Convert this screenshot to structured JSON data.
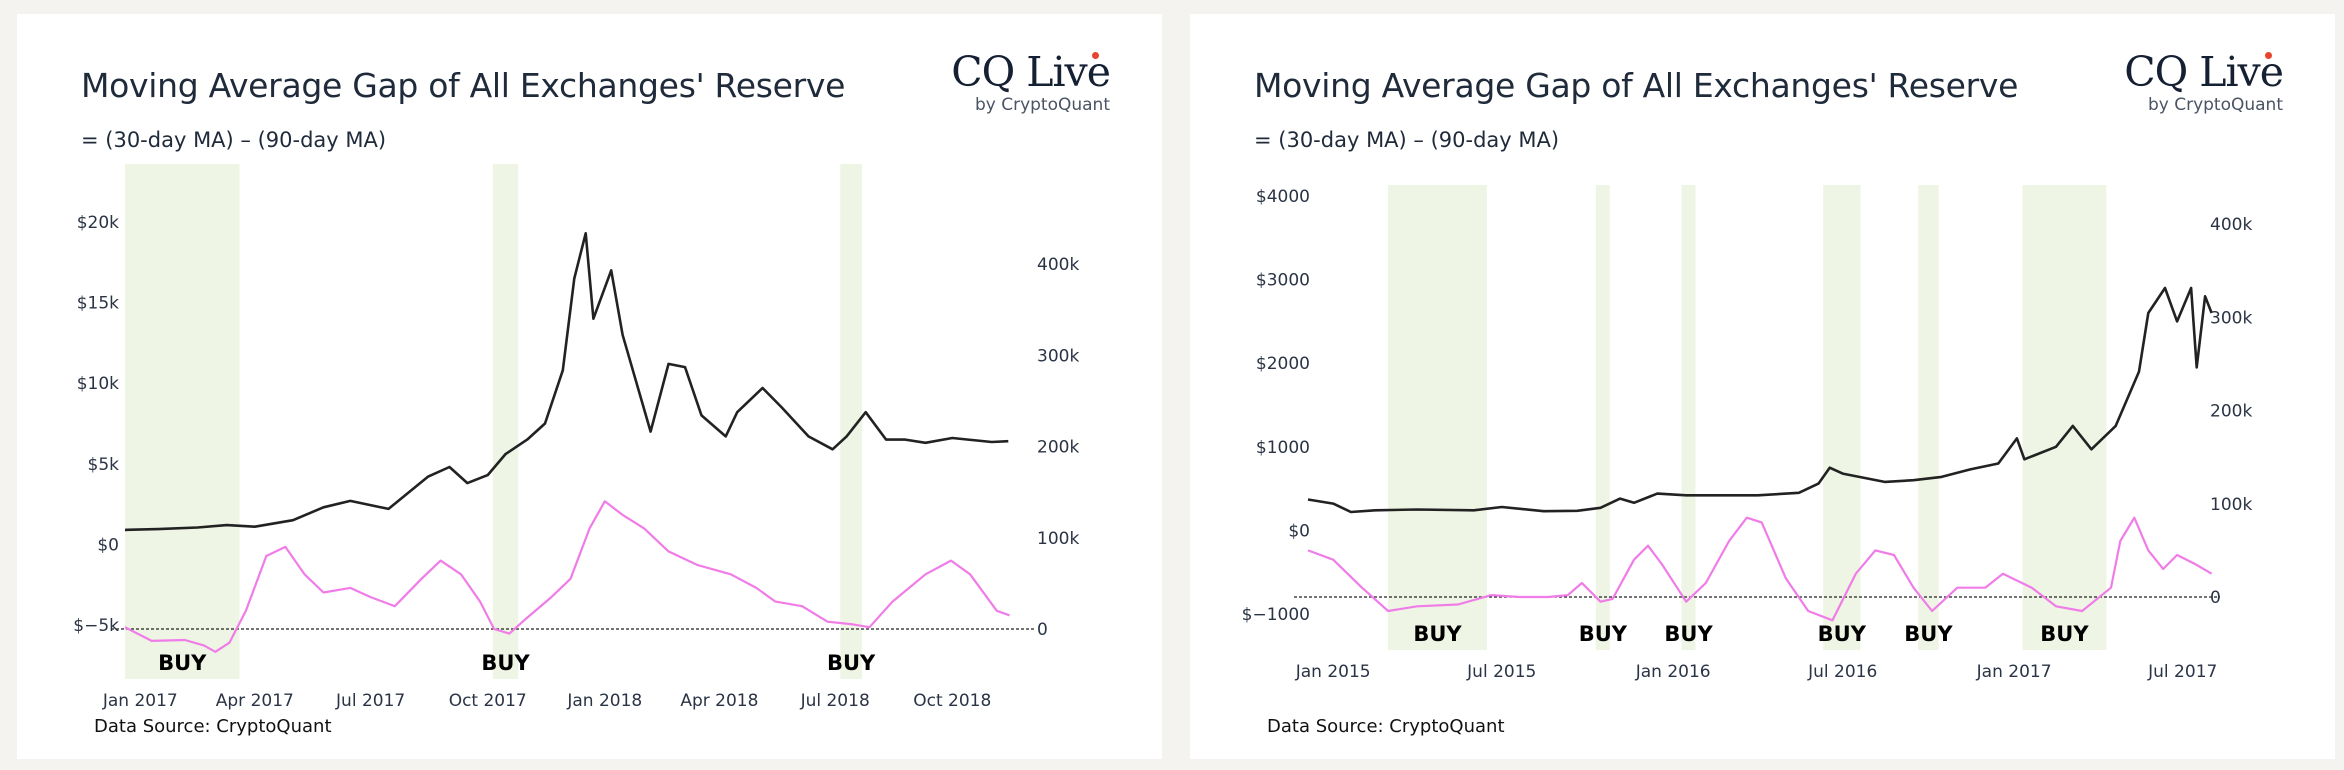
{
  "panels": [
    {
      "title": "Moving Average Gap of All Exchanges' Reserve",
      "subtitle": "= (30-day MA) – (90-day MA)",
      "logo": {
        "main": "CQ Live",
        "sub": "by CryptoQuant"
      },
      "source": "Data Source: CryptoQuant"
    },
    {
      "title": "Moving Average Gap of All Exchanges' Reserve",
      "subtitle": "= (30-day MA) – (90-day MA)",
      "logo": {
        "main": "CQ Live",
        "sub": "by CryptoQuant"
      },
      "source": "Data Source: CryptoQuant"
    }
  ],
  "chart_data": [
    {
      "type": "line",
      "title": "Moving Average Gap of All Exchanges' Reserve",
      "subtitle": "= (30-day MA) – (90-day MA)",
      "x_range": [
        "2016-12-20",
        "2018-12-05"
      ],
      "x_ticks": [
        {
          "label": "Jan 2017",
          "date": "2017-01-01"
        },
        {
          "label": "Apr 2017",
          "date": "2017-04-01"
        },
        {
          "label": "Jul 2017",
          "date": "2017-07-01"
        },
        {
          "label": "Oct 2017",
          "date": "2017-10-01"
        },
        {
          "label": "Jan 2018",
          "date": "2018-01-01"
        },
        {
          "label": "Apr 2018",
          "date": "2018-04-01"
        },
        {
          "label": "Jul 2018",
          "date": "2018-07-01"
        },
        {
          "label": "Oct 2018",
          "date": "2018-10-01"
        }
      ],
      "y_left": {
        "ticks": [
          {
            "label": "$20k",
            "value": 20000
          },
          {
            "label": "$15k",
            "value": 15000
          },
          {
            "label": "$10k",
            "value": 10000
          },
          {
            "label": "$5k",
            "value": 5000
          },
          {
            "label": "$0",
            "value": 0
          },
          {
            "label": "$−5k",
            "value": -5000
          }
        ]
      },
      "y_right": {
        "ticks": [
          {
            "label": "400k",
            "value": 400000
          },
          {
            "label": "300k",
            "value": 300000
          },
          {
            "label": "200k",
            "value": 200000
          },
          {
            "label": "100k",
            "value": 100000
          },
          {
            "label": "0",
            "value": 0
          }
        ]
      },
      "buy_zones": [
        {
          "start": "2016-12-20",
          "end": "2017-03-20",
          "label": "BUY"
        },
        {
          "start": "2017-10-05",
          "end": "2017-10-25",
          "label": "BUY"
        },
        {
          "start": "2018-07-05",
          "end": "2018-07-22",
          "label": "BUY"
        }
      ],
      "series": [
        {
          "axis": "left",
          "color": "#222222",
          "points": [
            [
              "2016-12-20",
              900
            ],
            [
              "2017-01-15",
              950
            ],
            [
              "2017-02-15",
              1050
            ],
            [
              "2017-03-10",
              1200
            ],
            [
              "2017-04-01",
              1100
            ],
            [
              "2017-05-01",
              1500
            ],
            [
              "2017-05-25",
              2300
            ],
            [
              "2017-06-15",
              2700
            ],
            [
              "2017-07-15",
              2200
            ],
            [
              "2017-08-15",
              4200
            ],
            [
              "2017-09-01",
              4800
            ],
            [
              "2017-09-15",
              3800
            ],
            [
              "2017-10-01",
              4300
            ],
            [
              "2017-10-15",
              5600
            ],
            [
              "2017-11-01",
              6500
            ],
            [
              "2017-11-15",
              7500
            ],
            [
              "2017-11-29",
              10800
            ],
            [
              "2017-12-08",
              16500
            ],
            [
              "2017-12-17",
              19300
            ],
            [
              "2017-12-23",
              14000
            ],
            [
              "2018-01-06",
              17000
            ],
            [
              "2018-01-15",
              13000
            ],
            [
              "2018-02-06",
              7000
            ],
            [
              "2018-02-20",
              11200
            ],
            [
              "2018-03-05",
              11000
            ],
            [
              "2018-03-18",
              8000
            ],
            [
              "2018-04-06",
              6700
            ],
            [
              "2018-04-15",
              8200
            ],
            [
              "2018-05-05",
              9700
            ],
            [
              "2018-05-20",
              8500
            ],
            [
              "2018-06-10",
              6700
            ],
            [
              "2018-06-29",
              5900
            ],
            [
              "2018-07-10",
              6700
            ],
            [
              "2018-07-25",
              8200
            ],
            [
              "2018-08-10",
              6500
            ],
            [
              "2018-08-25",
              6500
            ],
            [
              "2018-09-10",
              6300
            ],
            [
              "2018-10-01",
              6600
            ],
            [
              "2018-11-01",
              6350
            ],
            [
              "2018-11-14",
              6400
            ]
          ]
        },
        {
          "axis": "right",
          "color": "#f07ce8",
          "points": [
            [
              "2016-12-20",
              2000
            ],
            [
              "2017-01-10",
              -13000
            ],
            [
              "2017-02-05",
              -12000
            ],
            [
              "2017-02-20",
              -18000
            ],
            [
              "2017-03-01",
              -25000
            ],
            [
              "2017-03-12",
              -15000
            ],
            [
              "2017-03-25",
              20000
            ],
            [
              "2017-04-10",
              80000
            ],
            [
              "2017-04-25",
              90000
            ],
            [
              "2017-05-10",
              60000
            ],
            [
              "2017-05-25",
              40000
            ],
            [
              "2017-06-15",
              45000
            ],
            [
              "2017-07-01",
              35000
            ],
            [
              "2017-07-20",
              25000
            ],
            [
              "2017-08-10",
              55000
            ],
            [
              "2017-08-25",
              75000
            ],
            [
              "2017-09-10",
              60000
            ],
            [
              "2017-09-25",
              30000
            ],
            [
              "2017-10-06",
              0
            ],
            [
              "2017-10-18",
              -5000
            ],
            [
              "2017-10-30",
              10000
            ],
            [
              "2017-11-20",
              35000
            ],
            [
              "2017-12-05",
              55000
            ],
            [
              "2017-12-20",
              110000
            ],
            [
              "2018-01-01",
              140000
            ],
            [
              "2018-01-15",
              125000
            ],
            [
              "2018-02-01",
              110000
            ],
            [
              "2018-02-20",
              85000
            ],
            [
              "2018-03-15",
              70000
            ],
            [
              "2018-04-10",
              60000
            ],
            [
              "2018-04-30",
              45000
            ],
            [
              "2018-05-15",
              30000
            ],
            [
              "2018-06-05",
              25000
            ],
            [
              "2018-06-25",
              8000
            ],
            [
              "2018-07-15",
              5000
            ],
            [
              "2018-07-28",
              2000
            ],
            [
              "2018-08-15",
              30000
            ],
            [
              "2018-09-10",
              60000
            ],
            [
              "2018-09-30",
              75000
            ],
            [
              "2018-10-15",
              60000
            ],
            [
              "2018-11-05",
              20000
            ],
            [
              "2018-11-15",
              15000
            ]
          ]
        }
      ]
    },
    {
      "type": "line",
      "title": "Moving Average Gap of All Exchanges' Reserve",
      "subtitle": "= (30-day MA) – (90-day MA)",
      "x_range": [
        "2014-12-05",
        "2017-08-10"
      ],
      "x_ticks": [
        {
          "label": "Jan 2015",
          "date": "2015-01-01"
        },
        {
          "label": "Jul 2015",
          "date": "2015-07-01"
        },
        {
          "label": "Jan 2016",
          "date": "2016-01-01"
        },
        {
          "label": "Jul 2016",
          "date": "2016-07-01"
        },
        {
          "label": "Jan 2017",
          "date": "2017-01-01"
        },
        {
          "label": "Jul 2017",
          "date": "2017-07-01"
        }
      ],
      "y_left": {
        "ticks": [
          {
            "label": "$4000",
            "value": 4000
          },
          {
            "label": "$3000",
            "value": 3000
          },
          {
            "label": "$2000",
            "value": 2000
          },
          {
            "label": "$1000",
            "value": 1000
          },
          {
            "label": "$0",
            "value": 0
          },
          {
            "label": "$−1000",
            "value": -1000
          }
        ]
      },
      "y_right": {
        "ticks": [
          {
            "label": "400k",
            "value": 400000
          },
          {
            "label": "300k",
            "value": 300000
          },
          {
            "label": "200k",
            "value": 200000
          },
          {
            "label": "100k",
            "value": 100000
          },
          {
            "label": "0",
            "value": 0
          }
        ]
      },
      "buy_zones": [
        {
          "start": "2015-03-01",
          "end": "2015-06-15",
          "label": "BUY"
        },
        {
          "start": "2015-10-10",
          "end": "2015-10-25",
          "label": "BUY"
        },
        {
          "start": "2016-01-10",
          "end": "2016-01-25",
          "label": "BUY"
        },
        {
          "start": "2016-06-10",
          "end": "2016-07-20",
          "label": "BUY"
        },
        {
          "start": "2016-09-20",
          "end": "2016-10-12",
          "label": "BUY"
        },
        {
          "start": "2017-01-10",
          "end": "2017-04-10",
          "label": "BUY"
        }
      ],
      "series": [
        {
          "axis": "left",
          "color": "#222222",
          "points": [
            [
              "2014-12-05",
              370
            ],
            [
              "2015-01-01",
              320
            ],
            [
              "2015-01-20",
              220
            ],
            [
              "2015-02-15",
              240
            ],
            [
              "2015-04-01",
              250
            ],
            [
              "2015-06-01",
              240
            ],
            [
              "2015-07-01",
              280
            ],
            [
              "2015-08-15",
              230
            ],
            [
              "2015-09-20",
              235
            ],
            [
              "2015-10-15",
              270
            ],
            [
              "2015-11-05",
              380
            ],
            [
              "2015-11-20",
              330
            ],
            [
              "2015-12-15",
              440
            ],
            [
              "2016-01-15",
              420
            ],
            [
              "2016-02-20",
              420
            ],
            [
              "2016-04-01",
              420
            ],
            [
              "2016-05-15",
              450
            ],
            [
              "2016-06-05",
              560
            ],
            [
              "2016-06-17",
              750
            ],
            [
              "2016-07-01",
              680
            ],
            [
              "2016-08-15",
              580
            ],
            [
              "2016-09-15",
              600
            ],
            [
              "2016-10-15",
              640
            ],
            [
              "2016-11-15",
              730
            ],
            [
              "2016-12-15",
              800
            ],
            [
              "2017-01-04",
              1100
            ],
            [
              "2017-01-12",
              850
            ],
            [
              "2017-02-15",
              1000
            ],
            [
              "2017-03-05",
              1250
            ],
            [
              "2017-03-25",
              970
            ],
            [
              "2017-04-20",
              1250
            ],
            [
              "2017-05-15",
              1900
            ],
            [
              "2017-05-25",
              2600
            ],
            [
              "2017-06-12",
              2900
            ],
            [
              "2017-06-25",
              2500
            ],
            [
              "2017-07-10",
              2900
            ],
            [
              "2017-07-16",
              1950
            ],
            [
              "2017-07-25",
              2800
            ],
            [
              "2017-08-01",
              2600
            ]
          ]
        },
        {
          "axis": "right",
          "color": "#f07ce8",
          "points": [
            [
              "2014-12-05",
              50000
            ],
            [
              "2015-01-01",
              40000
            ],
            [
              "2015-02-01",
              10000
            ],
            [
              "2015-03-01",
              -15000
            ],
            [
              "2015-04-01",
              -10000
            ],
            [
              "2015-05-15",
              -8000
            ],
            [
              "2015-06-20",
              2000
            ],
            [
              "2015-07-20",
              0
            ],
            [
              "2015-08-20",
              0
            ],
            [
              "2015-09-10",
              2000
            ],
            [
              "2015-09-25",
              15000
            ],
            [
              "2015-10-15",
              -5000
            ],
            [
              "2015-10-28",
              -2000
            ],
            [
              "2015-11-20",
              40000
            ],
            [
              "2015-12-05",
              55000
            ],
            [
              "2015-12-20",
              35000
            ],
            [
              "2016-01-15",
              -5000
            ],
            [
              "2016-02-05",
              15000
            ],
            [
              "2016-03-01",
              60000
            ],
            [
              "2016-03-20",
              85000
            ],
            [
              "2016-04-05",
              80000
            ],
            [
              "2016-05-01",
              20000
            ],
            [
              "2016-05-25",
              -15000
            ],
            [
              "2016-06-20",
              -25000
            ],
            [
              "2016-07-15",
              25000
            ],
            [
              "2016-08-05",
              50000
            ],
            [
              "2016-08-25",
              45000
            ],
            [
              "2016-09-15",
              10000
            ],
            [
              "2016-10-05",
              -15000
            ],
            [
              "2016-11-01",
              10000
            ],
            [
              "2016-12-01",
              10000
            ],
            [
              "2016-12-20",
              25000
            ],
            [
              "2017-01-20",
              10000
            ],
            [
              "2017-02-15",
              -10000
            ],
            [
              "2017-03-15",
              -15000
            ],
            [
              "2017-04-15",
              10000
            ],
            [
              "2017-04-25",
              60000
            ],
            [
              "2017-05-10",
              85000
            ],
            [
              "2017-05-25",
              50000
            ],
            [
              "2017-06-10",
              30000
            ],
            [
              "2017-06-25",
              45000
            ],
            [
              "2017-07-15",
              35000
            ],
            [
              "2017-08-01",
              25000
            ]
          ]
        }
      ]
    }
  ]
}
